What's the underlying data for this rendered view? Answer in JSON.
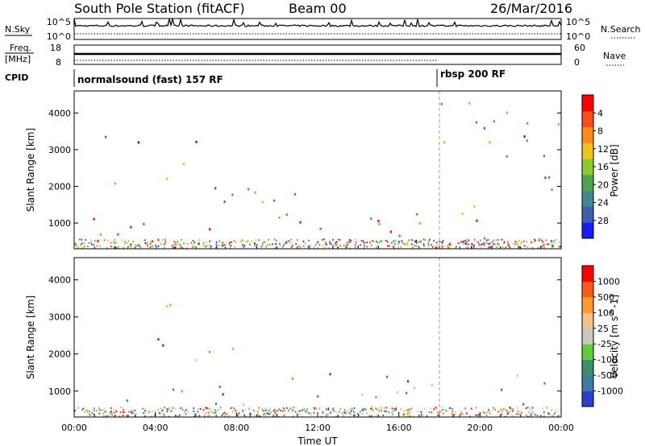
{
  "header": {
    "station": "South Pole Station (fitACF)",
    "beam": "Beam 00",
    "date": "26/Mar/2016"
  },
  "top_panels": {
    "nsky_label": "N.Sky",
    "nsearch_label": "N.Search",
    "noise_ticks": [
      "10^5",
      "10^0"
    ],
    "freq_label": "Freq.",
    "freq_unit": "[MHz]",
    "freq_ticks": [
      "18",
      "8"
    ],
    "nave_label": "Nave",
    "nave_ticks": [
      "60",
      "0"
    ],
    "cpid_label": "CPID",
    "cpid_segments": [
      {
        "label": "normalsound (fast) 157 RF",
        "start_h": 0,
        "end_h": 18
      },
      {
        "label": "rbsp 200 RF",
        "start_h": 18,
        "end_h": 24
      }
    ]
  },
  "chart_data": [
    {
      "type": "heatmap",
      "panel": "power",
      "xlabel": "",
      "ylabel": "Slant Range [km]",
      "xlim": [
        0,
        24
      ],
      "ylim": [
        300,
        4600
      ],
      "yticks": [
        1000,
        2000,
        3000,
        4000
      ],
      "colorbar": {
        "label": "Power [dB]",
        "ticks": [
          "4",
          "8",
          "12",
          "16",
          "20",
          "24",
          "28"
        ],
        "colors": [
          "#1a1aff",
          "#3d5fb0",
          "#3f8a8a",
          "#4ca54c",
          "#8ccc2a",
          "#f2c21a",
          "#ff8c1a",
          "#ff4a1a",
          "#ff0000"
        ]
      },
      "bands": [
        {
          "t0": 0.0,
          "t1": 24.0,
          "r0": 550,
          "r1": 1150,
          "level": 0.9
        },
        {
          "t0": 0.3,
          "t1": 11.0,
          "r0": 1550,
          "r1": 2150,
          "level": 0.3
        },
        {
          "t0": 0.5,
          "t1": 6.0,
          "r0": 3000,
          "r1": 3450,
          "level": 0.2
        },
        {
          "t0": 4.0,
          "t1": 6.5,
          "r0": 2200,
          "r1": 2750,
          "level": 0.6
        },
        {
          "t0": 8.0,
          "t1": 10.0,
          "r0": 1800,
          "r1": 2300,
          "level": 0.3
        },
        {
          "t0": 9.0,
          "t1": 21.0,
          "r0": 1150,
          "r1": 1650,
          "level": 0.5
        },
        {
          "t0": 18.0,
          "t1": 24.0,
          "r0": 1800,
          "r1": 4400,
          "level": 0.3
        }
      ]
    },
    {
      "type": "heatmap",
      "panel": "velocity",
      "xlabel": "Time UT",
      "ylabel": "Slant Range [km]",
      "xlim": [
        0,
        24
      ],
      "ylim": [
        300,
        4600
      ],
      "yticks": [
        1000,
        2000,
        3000,
        4000
      ],
      "xticks": [
        "00:00",
        "04:00",
        "08:00",
        "12:00",
        "16:00",
        "20:00",
        "00:00"
      ],
      "colorbar": {
        "label": "Velocity [m s^-1]",
        "ticks": [
          "1000",
          "500",
          "100",
          "25",
          "-25",
          "-100",
          "-500",
          "-1000"
        ],
        "colors": [
          "#2a40c8",
          "#3f7aa0",
          "#3c8f6a",
          "#5fcc3a",
          "#c8c8c0",
          "#f2c08a",
          "#ff9a2a",
          "#ff5a1a",
          "#ff0000"
        ]
      },
      "bands": [
        {
          "t0": 0.0,
          "t1": 24.0,
          "r0": 550,
          "r1": 1150,
          "level": 0.35
        },
        {
          "t0": 6.3,
          "t1": 7.8,
          "r0": 600,
          "r1": 1350,
          "level": 0.8
        },
        {
          "t0": 1.0,
          "t1": 9.0,
          "r0": 1850,
          "r1": 2200,
          "level": 0.5
        },
        {
          "t0": 4.0,
          "t1": 7.0,
          "r0": 2200,
          "r1": 2700,
          "level": 0.75
        },
        {
          "t0": 2.0,
          "t1": 6.0,
          "r0": 3000,
          "r1": 3400,
          "level": 0.5
        },
        {
          "t0": 10.0,
          "t1": 24.0,
          "r0": 1100,
          "r1": 1550,
          "level": 0.25
        }
      ]
    }
  ],
  "colors": {
    "cpid_divider": "#000000",
    "empty_bg": "#ffffff"
  }
}
